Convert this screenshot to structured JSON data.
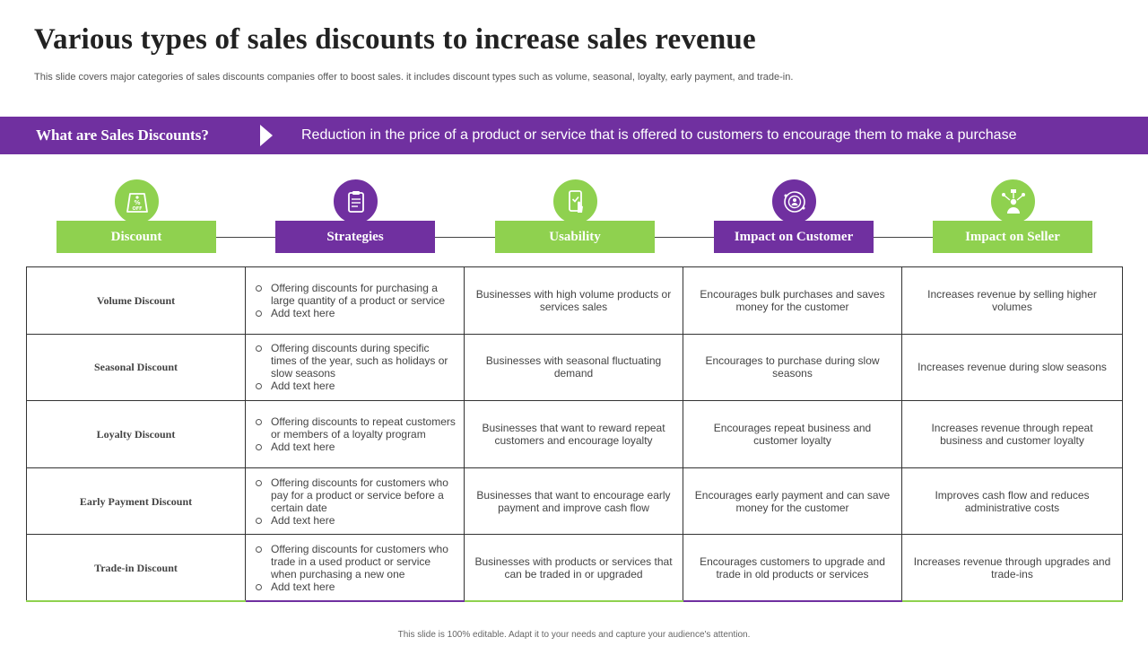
{
  "title": "Various types of sales discounts to increase sales revenue",
  "subtitle": "This slide covers major categories of sales discounts companies offer to boost sales. it includes discount types such as volume, seasonal, loyalty, early payment, and trade-in.",
  "banner": {
    "label": "What are Sales Discounts?",
    "text": "Reduction in the price of a product or service that is offered to customers to encourage them to make a purchase"
  },
  "headers": [
    {
      "label": "Discount",
      "icon": "discount-tag-icon",
      "color": "#8fd14f"
    },
    {
      "label": "Strategies",
      "icon": "clipboard-icon",
      "color": "#7030a0"
    },
    {
      "label": "Usability",
      "icon": "mobile-tap-icon",
      "color": "#8fd14f"
    },
    {
      "label": "Impact on Customer",
      "icon": "customer-target-icon",
      "color": "#7030a0"
    },
    {
      "label": "Impact on Seller",
      "icon": "seller-network-icon",
      "color": "#8fd14f"
    }
  ],
  "rows": [
    {
      "name": "Volume Discount",
      "strategies": [
        "Offering discounts for purchasing a large quantity of a product or service",
        "Add text here"
      ],
      "usability": "Businesses with high volume products or services sales",
      "customer": "Encourages bulk purchases and saves money for the customer",
      "seller": "Increases revenue by selling higher volumes"
    },
    {
      "name": "Seasonal Discount",
      "strategies": [
        "Offering discounts during specific times of the year, such as holidays or slow seasons",
        "Add text here"
      ],
      "usability": "Businesses with seasonal fluctuating demand",
      "customer": "Encourages to purchase during slow seasons",
      "seller": "Increases revenue during slow seasons"
    },
    {
      "name": "Loyalty Discount",
      "strategies": [
        "Offering discounts to repeat customers or members of a loyalty program",
        "Add text here"
      ],
      "usability": "Businesses that want to reward repeat customers and encourage loyalty",
      "customer": "Encourages repeat business and customer loyalty",
      "seller": "Increases revenue through repeat business and customer loyalty"
    },
    {
      "name": "Early Payment Discount",
      "strategies": [
        "Offering discounts for customers who pay for a product or service before a certain date",
        "Add text here"
      ],
      "usability": "Businesses that want to encourage early payment and improve cash flow",
      "customer": "Encourages early payment and can save money for the customer",
      "seller": "Improves cash flow and reduces administrative costs"
    },
    {
      "name": "Trade-in Discount",
      "strategies": [
        "Offering discounts for customers who trade in a used product or service when purchasing a new one",
        "Add text here"
      ],
      "usability": "Businesses with products or services that can be traded in or upgraded",
      "customer": "Encourages customers to upgrade and trade in old products or services",
      "seller": "Increases revenue through upgrades and trade-ins"
    }
  ],
  "footer": "This slide is 100% editable. Adapt it to your needs and capture your audience's attention."
}
